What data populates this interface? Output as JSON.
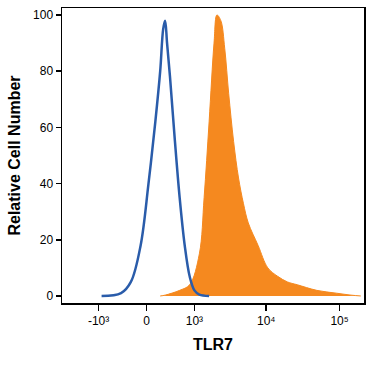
{
  "chart_data": {
    "type": "histogram",
    "x_label": "TLR7",
    "y_label": "Relative Cell Number",
    "xlim": [
      -3300,
      215000
    ],
    "xticks": [
      {
        "value": -1000,
        "label": "-10³"
      },
      0,
      {
        "value": 1000,
        "label": "10³"
      },
      {
        "value": 10000,
        "label": "10⁴"
      },
      {
        "value": 100000,
        "label": "10⁵"
      }
    ],
    "ylim": [
      -2.5,
      102.5
    ],
    "yticks": [
      0,
      20,
      40,
      60,
      80,
      100
    ],
    "grid": false,
    "series": [
      {
        "type": "area",
        "color": "#f5891f",
        "x": [
          207,
          289,
          579,
          845,
          1184,
          1387,
          1635,
          1918,
          2106,
          2387,
          2705,
          3065,
          3580,
          4184,
          4877,
          5691,
          7745,
          10520,
          14320,
          19470,
          26440,
          48900,
          90300,
          143200,
          194700
        ],
        "values": [
          0,
          0.3,
          2,
          4,
          15,
          35,
          62,
          90,
          100,
          98,
          88,
          72,
          55,
          42,
          33,
          26,
          18,
          10,
          7,
          5,
          4,
          2,
          1,
          0.3,
          0
        ]
      },
      {
        "type": "line",
        "color": "#2a5caa",
        "x": [
          -901,
          -415,
          -239,
          -87,
          29,
          131,
          207,
          256,
          289,
          323,
          377,
          475,
          579,
          705,
          845,
          1000,
          1184,
          1635
        ],
        "values": [
          0,
          1,
          5,
          18,
          40,
          62,
          80,
          95,
          98,
          90,
          78,
          55,
          35,
          18,
          7,
          2,
          0.5,
          0
        ]
      }
    ]
  }
}
